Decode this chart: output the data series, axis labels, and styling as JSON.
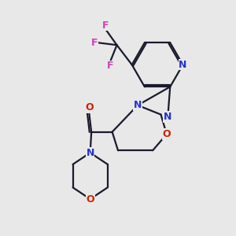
{
  "bg_color": "#e8e8e8",
  "bond_color": "#1a1a2e",
  "N_color": "#2233cc",
  "O_color": "#cc2200",
  "F_color": "#cc44bb",
  "line_width": 1.6,
  "dpi": 100,
  "fig_size": [
    3.0,
    3.0
  ],
  "xlim": [
    0,
    10
  ],
  "ylim": [
    0,
    10
  ]
}
